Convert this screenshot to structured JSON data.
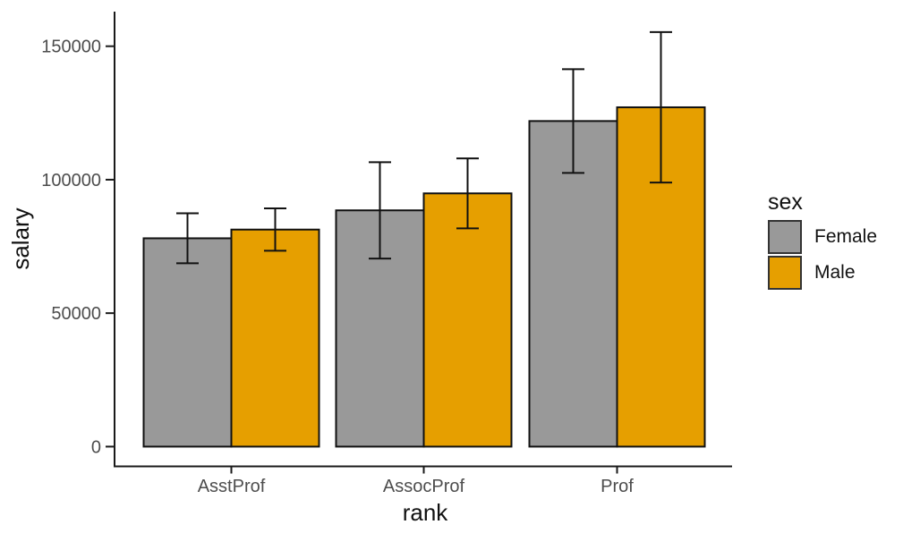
{
  "chart_data": {
    "type": "bar",
    "title": "",
    "xlabel": "rank",
    "ylabel": "salary",
    "categories": [
      "AsstProf",
      "AssocProf",
      "Prof"
    ],
    "y_ticks": [
      {
        "value": 0,
        "label": "0"
      },
      {
        "value": 50000,
        "label": "50000"
      },
      {
        "value": 100000,
        "label": "100000"
      },
      {
        "value": 150000,
        "label": "150000"
      }
    ],
    "ylim": [
      -7500,
      163000
    ],
    "grid": false,
    "bar_outline_color": "#111111",
    "errorbar_color": "#111111",
    "axis_color": "#1a1a1a",
    "tick_label_color": "#4d4d4d",
    "legend": {
      "title": "sex",
      "position": "right",
      "entries": [
        "Female",
        "Male"
      ]
    },
    "error_bars": "mean ± standard deviation",
    "series": [
      {
        "name": "Female",
        "color": "#999999",
        "values": [
          78050,
          88513,
          121968
        ],
        "error_upper": [
          87422,
          106563,
          141408
        ],
        "error_lower": [
          68678,
          70463,
          102528
        ]
      },
      {
        "name": "Male",
        "color": "#E69F00",
        "values": [
          81311,
          94870,
          127121
        ],
        "error_upper": [
          89236,
          107989,
          155321
        ],
        "error_lower": [
          73386,
          81751,
          98921
        ]
      }
    ]
  }
}
